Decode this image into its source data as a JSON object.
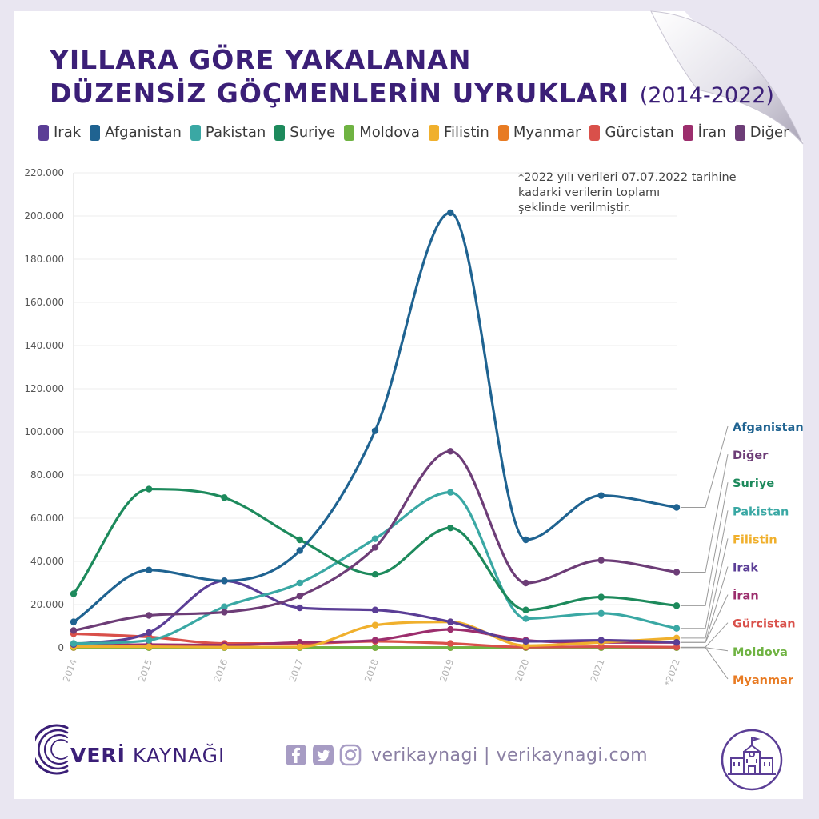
{
  "title": {
    "line1": "YILLARA GÖRE YAKALANAN",
    "line2": "DÜZENSİZ GÖÇMENLERİN UYRUKLARI",
    "years": "(2014-2022)"
  },
  "note": "*2022 yılı verileri 07.07.2022 tarihine\nkadarki verilerin toplamı\nşeklinde verilmiştir.",
  "brand": {
    "bold": "VERİ",
    "rest": " KAYNAĞI"
  },
  "social": {
    "text": "verikaynagi | verikaynagi.com"
  },
  "chart_data": {
    "type": "line",
    "categories": [
      "2014",
      "2015",
      "2016",
      "2017",
      "2018",
      "2019",
      "2020",
      "2021",
      "*2022"
    ],
    "ylim": [
      0,
      220000
    ],
    "yticks": [
      "0",
      "20.000",
      "40.000",
      "60.000",
      "80.000",
      "100.000",
      "120.000",
      "140.000",
      "160.000",
      "180.000",
      "200.000",
      "220.000"
    ],
    "grid": true,
    "legend_position": "top",
    "series": [
      {
        "name": "Irak",
        "color": "#5b3e96",
        "values": [
          1500,
          7000,
          31000,
          18500,
          17500,
          12000,
          3000,
          3500,
          2500
        ]
      },
      {
        "name": "Afganistan",
        "color": "#1f6391",
        "values": [
          12000,
          36000,
          31000,
          45000,
          100500,
          201500,
          50000,
          70500,
          65000
        ]
      },
      {
        "name": "Pakistan",
        "color": "#3aa8a4",
        "values": [
          2000,
          3500,
          19000,
          30000,
          50500,
          72000,
          13500,
          16000,
          9000
        ]
      },
      {
        "name": "Suriye",
        "color": "#1d8a5c",
        "values": [
          25000,
          73500,
          69500,
          50000,
          34000,
          55500,
          17500,
          23500,
          19500
        ]
      },
      {
        "name": "Moldova",
        "color": "#6fb342",
        "values": [
          200,
          100,
          100,
          100,
          100,
          100,
          100,
          100,
          100
        ]
      },
      {
        "name": "Filistin",
        "color": "#f0b02d",
        "values": [
          500,
          500,
          300,
          400,
          10500,
          12000,
          1000,
          2500,
          4500
        ]
      },
      {
        "name": "Myanmar",
        "color": "#e87b23",
        "values": [
          100,
          100,
          100,
          100,
          100,
          100,
          100,
          100,
          100
        ]
      },
      {
        "name": "Gürcistan",
        "color": "#d9504a",
        "values": [
          6500,
          5000,
          2000,
          2000,
          3000,
          2000,
          300,
          500,
          300
        ]
      },
      {
        "name": "İran",
        "color": "#9c2e6d",
        "values": [
          800,
          1500,
          1200,
          2500,
          3500,
          8500,
          3500,
          2500,
          2500
        ]
      },
      {
        "name": "Diğer",
        "color": "#6d3d77",
        "values": [
          8000,
          15000,
          16500,
          24000,
          46500,
          91000,
          30000,
          40500,
          35000
        ]
      }
    ],
    "end_labels": [
      {
        "text": "Afganistan",
        "series": "Afganistan"
      },
      {
        "text": "Diğer",
        "series": "Diğer"
      },
      {
        "text": "Suriye",
        "series": "Suriye"
      },
      {
        "text": "Pakistan",
        "series": "Pakistan"
      },
      {
        "text": "Filistin",
        "series": "Filistin"
      },
      {
        "text": "Irak",
        "series": "Irak"
      },
      {
        "text": "İran",
        "series": "İran"
      },
      {
        "text": "Gürcistan",
        "series": "Gürcistan"
      },
      {
        "text": "Moldova",
        "series": "Moldova"
      },
      {
        "text": "Myanmar",
        "series": "Myanmar"
      }
    ]
  }
}
